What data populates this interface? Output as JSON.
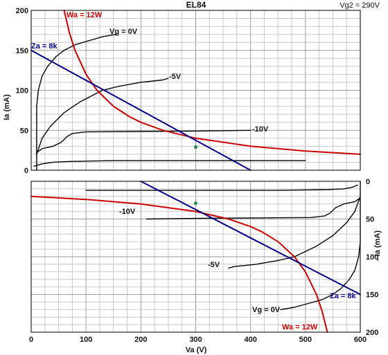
{
  "chart_data": [
    {
      "type": "line",
      "title": "EL84",
      "note": "Vg2 = 290V",
      "xlabel": "",
      "ylabel": "Ia (mA)",
      "xlim": [
        0,
        600
      ],
      "ylim": [
        0,
        200
      ],
      "x_ticks": [],
      "y_ticks": [
        0,
        50,
        100,
        150,
        200
      ],
      "grid": true,
      "series": [
        {
          "name": "Vg = 0V",
          "color": "#000000",
          "points": [
            [
              10,
              0
            ],
            [
              10,
              80
            ],
            [
              13,
              100
            ],
            [
              20,
              118
            ],
            [
              30,
              130
            ],
            [
              45,
              142
            ],
            [
              60,
              150
            ],
            [
              80,
              157
            ],
            [
              100,
              161
            ],
            [
              130,
              167
            ],
            [
              155,
              170
            ]
          ]
        },
        {
          "name": "-5V",
          "color": "#000000",
          "points": [
            [
              10,
              20
            ],
            [
              20,
              40
            ],
            [
              35,
              55
            ],
            [
              60,
              72
            ],
            [
              90,
              86
            ],
            [
              130,
              100
            ],
            [
              160,
              105
            ],
            [
              200,
              110
            ],
            [
              240,
              113
            ],
            [
              250,
              115
            ]
          ]
        },
        {
          "name": "-10V",
          "color": "#000000",
          "points": [
            [
              10,
              22
            ],
            [
              20,
              27
            ],
            [
              40,
              30
            ],
            [
              55,
              35
            ],
            [
              65,
              42
            ],
            [
              75,
              46
            ],
            [
              100,
              48
            ],
            [
              200,
              48.5
            ],
            [
              300,
              49
            ],
            [
              400,
              50
            ]
          ]
        },
        {
          "name": "",
          "color": "#000000",
          "points": [
            [
              5,
              5
            ],
            [
              20,
              8
            ],
            [
              40,
              10
            ],
            [
              70,
              11
            ],
            [
              150,
              12
            ],
            [
              300,
              12
            ],
            [
              500,
              12
            ]
          ]
        },
        {
          "name": "Wa = 12W",
          "color": "#cc0000",
          "points": [
            [
              60,
              200
            ],
            [
              70,
              171.4
            ],
            [
              80,
              150
            ],
            [
              100,
              120
            ],
            [
              120,
              100
            ],
            [
              150,
              80
            ],
            [
              180,
              66.7
            ],
            [
              200,
              60
            ],
            [
              240,
              50
            ],
            [
              300,
              40
            ],
            [
              400,
              30
            ],
            [
              500,
              24
            ],
            [
              600,
              20
            ]
          ]
        },
        {
          "name": "Za = 8k",
          "color": "#00008b",
          "points": [
            [
              0,
              150
            ],
            [
              100,
              112.5
            ],
            [
              200,
              75
            ],
            [
              300,
              37.5
            ],
            [
              400,
              0
            ]
          ]
        }
      ],
      "operating_point": {
        "x": 300,
        "y": 29,
        "color": "#2e8b57"
      },
      "labels": {
        "vg0": "Vg = 0V",
        "m5": "-5V",
        "m10": "-10V",
        "wa": "Wa = 12W",
        "za": "Za = 8k"
      }
    },
    {
      "type": "line",
      "title": "",
      "xlabel": "Va (V)",
      "ylabel": "- Ia (mA)",
      "xlim": [
        0,
        600
      ],
      "ylim": [
        0,
        200
      ],
      "x_ticks": [
        0,
        100,
        200,
        300,
        400,
        500,
        600
      ],
      "y_ticks": [
        0,
        50,
        100,
        150,
        200
      ],
      "y_inverted": true,
      "grid": true,
      "series": [
        {
          "name": "Vg = 0V",
          "color": "#000000",
          "points": [
            [
              600,
              0
            ],
            [
              600,
              80
            ],
            [
              597,
              100
            ],
            [
              590,
              118
            ],
            [
              580,
              130
            ],
            [
              565,
              142
            ],
            [
              550,
              150
            ],
            [
              530,
              157
            ],
            [
              510,
              161
            ],
            [
              480,
              167
            ],
            [
              455,
              170
            ]
          ]
        },
        {
          "name": "-5V",
          "color": "#000000",
          "points": [
            [
              600,
              20
            ],
            [
              590,
              40
            ],
            [
              575,
              55
            ],
            [
              550,
              72
            ],
            [
              520,
              86
            ],
            [
              480,
              100
            ],
            [
              450,
              105
            ],
            [
              410,
              110
            ],
            [
              370,
              113
            ],
            [
              360,
              115
            ]
          ]
        },
        {
          "name": "-10V",
          "color": "#000000",
          "points": [
            [
              600,
              22
            ],
            [
              590,
              27
            ],
            [
              570,
              30
            ],
            [
              555,
              35
            ],
            [
              545,
              42
            ],
            [
              535,
              46
            ],
            [
              510,
              48
            ],
            [
              410,
              48.5
            ],
            [
              310,
              49
            ],
            [
              210,
              50
            ]
          ]
        },
        {
          "name": "",
          "color": "#000000",
          "points": [
            [
              595,
              5
            ],
            [
              585,
              8
            ],
            [
              570,
              10
            ],
            [
              540,
              11
            ],
            [
              450,
              12
            ],
            [
              300,
              12
            ],
            [
              100,
              12
            ]
          ]
        },
        {
          "name": "Wa = 12W",
          "color": "#cc0000",
          "points": [
            [
              0,
              20
            ],
            [
              100,
              24
            ],
            [
              200,
              30
            ],
            [
              300,
              40
            ],
            [
              360,
              50
            ],
            [
              400,
              60
            ],
            [
              420,
              66.7
            ],
            [
              450,
              80
            ],
            [
              480,
              100
            ],
            [
              500,
              120
            ],
            [
              520,
              150
            ],
            [
              530,
              171.4
            ],
            [
              540,
              200
            ]
          ]
        },
        {
          "name": "Za = 8k",
          "color": "#00008b",
          "points": [
            [
              600,
              150
            ],
            [
              500,
              112.5
            ],
            [
              400,
              75
            ],
            [
              300,
              37.5
            ],
            [
              200,
              0
            ]
          ]
        }
      ],
      "operating_point": {
        "x": 300,
        "y": 29,
        "color": "#2e8b57"
      },
      "labels": {
        "vg0": "Vg = 0V",
        "m5": "-5V",
        "m10": "-10V",
        "wa": "Wa = 12W",
        "za": "Za = 8k"
      }
    }
  ]
}
